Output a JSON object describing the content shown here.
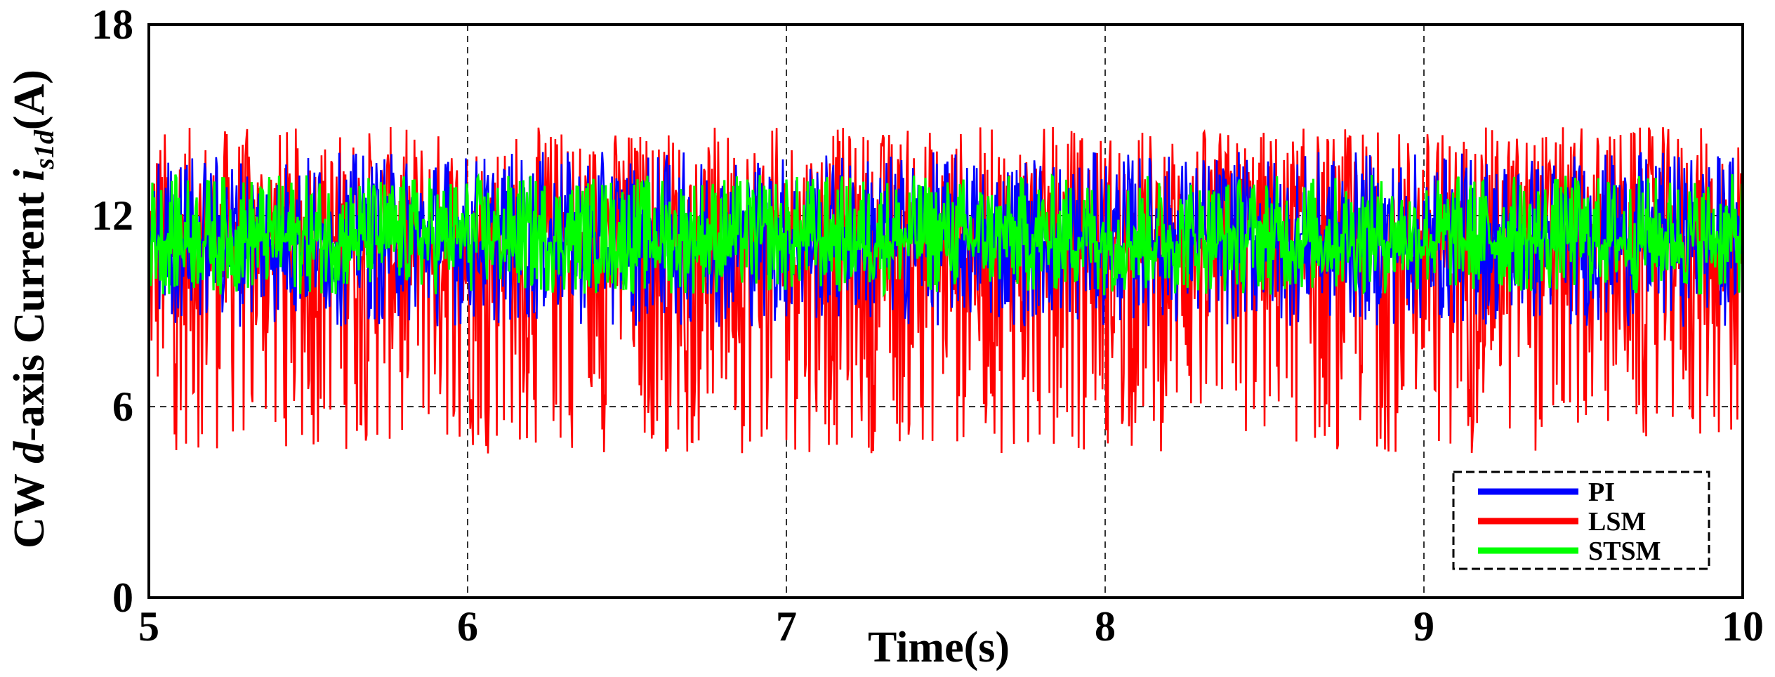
{
  "chart_data": {
    "type": "line",
    "xlabel": "Time(s)",
    "ylabel": {
      "prefix": "CW ",
      "italic_d": "d",
      "middle": "-axis Current ",
      "italic_i": "i",
      "subscript": "s1d",
      "suffix": "(A)"
    },
    "xlim": [
      5,
      10
    ],
    "ylim": [
      0,
      18
    ],
    "xticks": [
      "5",
      "6",
      "7",
      "8",
      "9",
      "10"
    ],
    "yticks": [
      "0",
      "6",
      "12",
      "18"
    ],
    "grid": true,
    "legend_position": "bottom-right",
    "series": [
      {
        "name": "PI",
        "color": "#0000ff",
        "mean": 11.2,
        "typical_min": 8.5,
        "typical_max": 14.0
      },
      {
        "name": "LSM",
        "color": "#ff0000",
        "mean": 11.2,
        "typical_min": 4.5,
        "typical_max": 14.8
      },
      {
        "name": "STSM",
        "color": "#00ff00",
        "mean": 11.2,
        "typical_min": 9.5,
        "typical_max": 13.3
      }
    ]
  }
}
